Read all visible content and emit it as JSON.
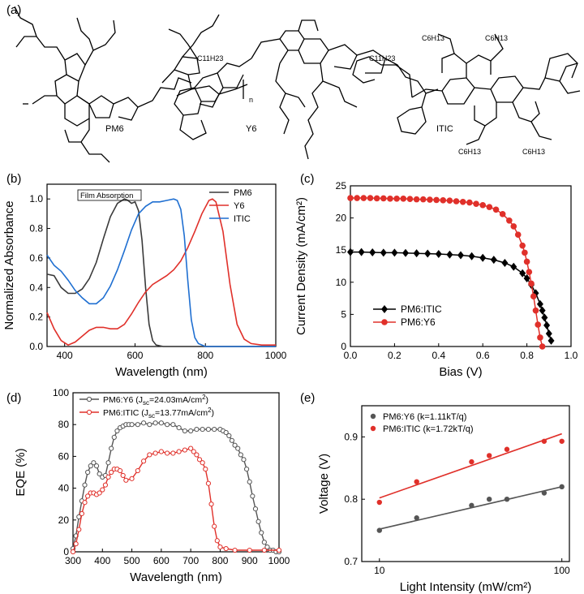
{
  "panels": {
    "a": "(a)",
    "b": "(b)",
    "c": "(c)",
    "d": "(d)",
    "e": "(e)"
  },
  "molecules": {
    "pm6": "PM6",
    "y6": "Y6",
    "itic": "ITIC",
    "subscript_n": "n",
    "c11h23": "C11H23",
    "c6h13": "C6H13"
  },
  "colors": {
    "pm6": "#3a3a3a",
    "y6": "#e0302a",
    "itic": "#1f6fd1",
    "red": "#e0302a",
    "gray": "#3a3a3a"
  },
  "chart_data": [
    {
      "id": "b",
      "type": "line",
      "title": "Film Absorption",
      "xlabel": "Wavelength (nm)",
      "ylabel": "Normalized Absorbance",
      "xlim": [
        350,
        1000
      ],
      "ylim": [
        0,
        1.1
      ],
      "xticks": [
        400,
        600,
        800,
        1000
      ],
      "yticks": [
        0.0,
        0.2,
        0.4,
        0.6,
        0.8,
        1.0
      ],
      "legend": "top-right",
      "series": [
        {
          "name": "PM6",
          "color": "#3a3a3a",
          "x": [
            350,
            370,
            390,
            410,
            430,
            450,
            470,
            490,
            510,
            530,
            550,
            570,
            580,
            590,
            600,
            610,
            620,
            630,
            640,
            650,
            660,
            680,
            700,
            1000
          ],
          "y": [
            0.49,
            0.48,
            0.4,
            0.36,
            0.36,
            0.39,
            0.46,
            0.57,
            0.73,
            0.88,
            0.97,
            1.0,
            0.99,
            0.97,
            0.98,
            0.92,
            0.72,
            0.4,
            0.15,
            0.04,
            0.01,
            0.0,
            0.0,
            0.0
          ]
        },
        {
          "name": "Y6",
          "color": "#e0302a",
          "x": [
            350,
            370,
            390,
            410,
            430,
            450,
            470,
            490,
            510,
            530,
            550,
            570,
            590,
            610,
            630,
            650,
            670,
            690,
            710,
            730,
            750,
            770,
            790,
            810,
            820,
            830,
            850,
            870,
            890,
            910,
            930,
            960,
            1000
          ],
          "y": [
            0.23,
            0.12,
            0.04,
            0.01,
            0.03,
            0.07,
            0.11,
            0.13,
            0.13,
            0.12,
            0.12,
            0.15,
            0.22,
            0.3,
            0.37,
            0.42,
            0.45,
            0.48,
            0.52,
            0.58,
            0.67,
            0.78,
            0.9,
            0.99,
            1.0,
            0.98,
            0.78,
            0.42,
            0.15,
            0.05,
            0.02,
            0.01,
            0.01
          ]
        },
        {
          "name": "ITIC",
          "color": "#1f6fd1",
          "x": [
            350,
            370,
            390,
            410,
            430,
            450,
            470,
            490,
            510,
            530,
            550,
            570,
            590,
            610,
            630,
            650,
            670,
            690,
            710,
            720,
            730,
            740,
            750,
            760,
            770,
            780,
            800,
            850,
            1000
          ],
          "y": [
            0.62,
            0.55,
            0.51,
            0.45,
            0.38,
            0.33,
            0.29,
            0.29,
            0.33,
            0.41,
            0.52,
            0.65,
            0.79,
            0.9,
            0.95,
            0.98,
            0.98,
            0.99,
            1.0,
            0.99,
            0.93,
            0.75,
            0.45,
            0.18,
            0.06,
            0.02,
            0.0,
            0.0,
            0.0
          ]
        }
      ]
    },
    {
      "id": "c",
      "type": "line",
      "xlabel": "Bias (V)",
      "ylabel": "Current Density (mA/cm²)",
      "xlim": [
        0,
        1.0
      ],
      "ylim": [
        0,
        25
      ],
      "xticks": [
        0.0,
        0.2,
        0.4,
        0.6,
        0.8,
        1.0
      ],
      "yticks": [
        0,
        5,
        10,
        15,
        20,
        25
      ],
      "legend": "bottom-left",
      "series": [
        {
          "name": "PM6:ITIC",
          "color": "#000000",
          "marker": "diamond",
          "x": [
            0.0,
            0.05,
            0.1,
            0.15,
            0.2,
            0.25,
            0.3,
            0.35,
            0.4,
            0.45,
            0.5,
            0.55,
            0.6,
            0.65,
            0.7,
            0.74,
            0.78,
            0.8,
            0.82,
            0.84,
            0.86,
            0.87,
            0.88,
            0.89,
            0.9,
            0.91
          ],
          "y": [
            14.7,
            14.7,
            14.65,
            14.6,
            14.6,
            14.55,
            14.5,
            14.45,
            14.4,
            14.3,
            14.2,
            14.05,
            13.8,
            13.5,
            13.0,
            12.4,
            11.4,
            10.6,
            9.6,
            8.3,
            6.6,
            5.6,
            4.5,
            3.3,
            2.0,
            0.9
          ]
        },
        {
          "name": "PM6:Y6",
          "color": "#e0302a",
          "marker": "circle",
          "x": [
            0.0,
            0.03,
            0.06,
            0.09,
            0.12,
            0.15,
            0.18,
            0.21,
            0.24,
            0.27,
            0.3,
            0.33,
            0.36,
            0.39,
            0.42,
            0.45,
            0.48,
            0.51,
            0.54,
            0.57,
            0.6,
            0.63,
            0.66,
            0.69,
            0.72,
            0.74,
            0.76,
            0.78,
            0.79,
            0.8,
            0.81,
            0.82,
            0.83,
            0.84,
            0.85,
            0.86,
            0.87
          ],
          "y": [
            23.1,
            23.1,
            23.1,
            23.1,
            23.05,
            23.05,
            23.0,
            23.0,
            23.0,
            22.95,
            22.9,
            22.9,
            22.85,
            22.8,
            22.75,
            22.7,
            22.6,
            22.5,
            22.4,
            22.2,
            22.0,
            21.7,
            21.3,
            20.6,
            19.6,
            18.7,
            17.4,
            15.7,
            14.6,
            13.2,
            11.6,
            9.8,
            7.8,
            5.6,
            3.4,
            1.4,
            0.0
          ]
        }
      ]
    },
    {
      "id": "d",
      "type": "line",
      "xlabel": "Wavelength (nm)",
      "ylabel": "EQE (%)",
      "xlim": [
        300,
        1000
      ],
      "ylim": [
        0,
        100
      ],
      "xticks": [
        300,
        400,
        500,
        600,
        700,
        800,
        900,
        1000
      ],
      "yticks": [
        0,
        20,
        40,
        60,
        80,
        100
      ],
      "legend": "top-left",
      "series": [
        {
          "name": "PM6:Y6",
          "jsc_label": "PM6:Y6 (J",
          "jsc_sub": "sc",
          "jsc_value": "=24.03mA/cm",
          "jsc_sup": "2",
          "jsc_end": ")",
          "color": "#555555",
          "x": [
            300,
            310,
            320,
            330,
            340,
            350,
            360,
            370,
            380,
            390,
            400,
            410,
            420,
            430,
            440,
            450,
            460,
            470,
            480,
            490,
            500,
            520,
            540,
            560,
            580,
            600,
            620,
            640,
            660,
            680,
            700,
            720,
            740,
            760,
            780,
            800,
            810,
            820,
            830,
            840,
            850,
            860,
            870,
            880,
            890,
            900,
            910,
            920,
            930,
            940,
            950,
            960,
            970,
            980,
            990,
            1000
          ],
          "y": [
            2,
            10,
            22,
            32,
            42,
            50,
            54,
            56,
            54,
            49,
            47,
            48,
            56,
            65,
            72,
            76,
            78,
            79,
            80,
            80,
            80,
            80,
            81,
            80,
            81,
            81,
            80,
            80,
            78,
            76,
            76,
            77,
            77,
            77,
            77,
            77,
            76,
            75,
            73,
            70,
            67,
            65,
            61,
            58,
            52,
            44,
            35,
            27,
            19,
            12,
            6,
            3,
            1,
            1,
            0,
            0
          ]
        },
        {
          "name": "PM6:ITIC",
          "jsc_label": "PM6:ITIC (J",
          "jsc_sub": "sc",
          "jsc_value": "=13.77mA/cm",
          "jsc_sup": "2",
          "jsc_end": ")",
          "color": "#e0302a",
          "x": [
            300,
            310,
            320,
            330,
            340,
            350,
            360,
            370,
            380,
            390,
            400,
            410,
            420,
            430,
            440,
            450,
            460,
            470,
            480,
            500,
            520,
            540,
            560,
            580,
            600,
            620,
            640,
            660,
            680,
            700,
            710,
            720,
            730,
            740,
            750,
            760,
            770,
            780,
            790,
            800,
            820,
            850,
            900,
            950,
            1000
          ],
          "y": [
            0,
            5,
            14,
            24,
            31,
            35,
            37,
            37,
            36,
            37,
            39,
            42,
            47,
            50,
            52,
            52,
            51,
            48,
            45,
            46,
            51,
            57,
            61,
            62,
            63,
            62,
            62,
            63,
            64,
            65,
            63,
            61,
            58,
            56,
            52,
            43,
            30,
            16,
            7,
            3,
            2,
            1,
            1,
            1,
            1
          ]
        }
      ]
    },
    {
      "id": "e",
      "type": "scatter",
      "xlabel": "Light Intensity (mW/cm²)",
      "ylabel": "Voltage (V)",
      "xscale": "log",
      "xlim": [
        8,
        110
      ],
      "ylim": [
        0.7,
        0.95
      ],
      "xticks": [
        10,
        100
      ],
      "yticks": [
        0.7,
        0.8,
        0.9
      ],
      "legend": "top-left",
      "series": [
        {
          "name": "PM6:Y6 (k=1.11kT/q)",
          "color": "#555555",
          "x": [
            10,
            16,
            32,
            40,
            50,
            80,
            100
          ],
          "y": [
            0.75,
            0.77,
            0.79,
            0.8,
            0.8,
            0.81,
            0.82
          ],
          "fit": [
            [
              10,
              0.752
            ],
            [
              100,
              0.82
            ]
          ]
        },
        {
          "name": "PM6:ITIC (k=1.72kT/q)",
          "color": "#e0302a",
          "x": [
            10,
            16,
            32,
            40,
            50,
            80,
            100
          ],
          "y": [
            0.795,
            0.828,
            0.86,
            0.87,
            0.88,
            0.893,
            0.893
          ],
          "fit": [
            [
              10,
              0.802
            ],
            [
              100,
              0.905
            ]
          ]
        }
      ]
    }
  ]
}
